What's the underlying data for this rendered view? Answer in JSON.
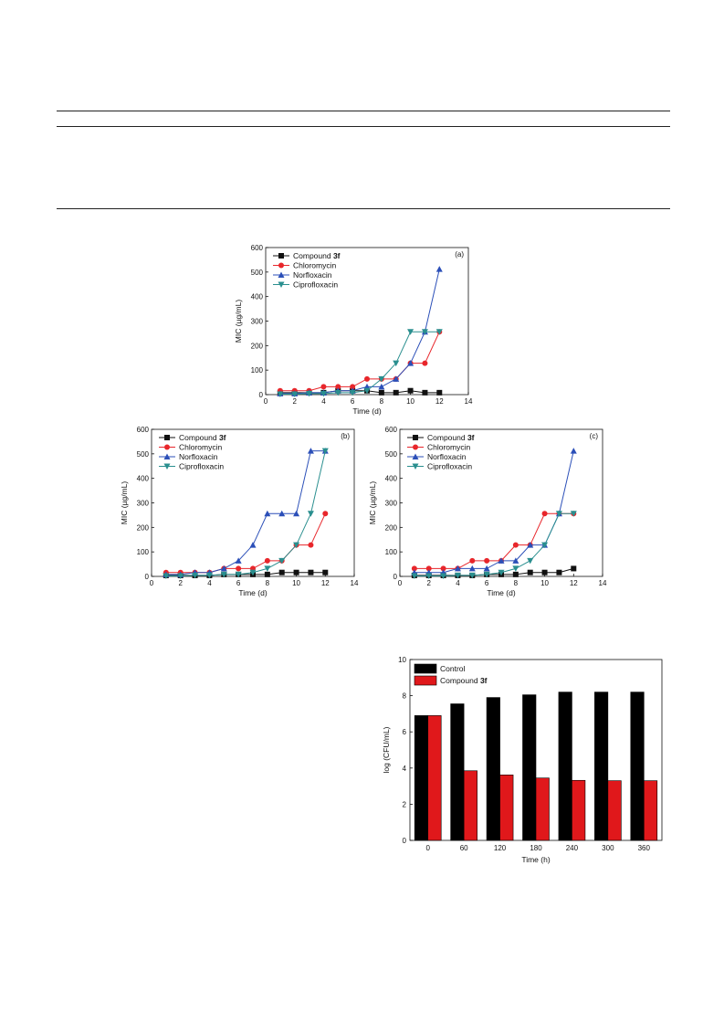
{
  "colors": {
    "compound_3f": "#111111",
    "chloromycin": "#e8262b",
    "norfloxacin": "#2b4fb8",
    "ciprofloxacin": "#2a8f8f",
    "control_bar": "#000000",
    "compound_bar": "#e0181b"
  },
  "chart_data": [
    {
      "type": "line",
      "panel_label": "(a)",
      "xlabel": "Time (d)",
      "ylabel": "MIC (µg/mL)",
      "xlim": [
        0,
        14
      ],
      "ylim": [
        0,
        600
      ],
      "xticks": [
        "0",
        "2",
        "4",
        "6",
        "8",
        "10",
        "12",
        "14"
      ],
      "yticks": [
        "0",
        "100",
        "200",
        "300",
        "400",
        "500",
        "600"
      ],
      "legend_position": "top-left",
      "x": [
        1,
        2,
        3,
        4,
        5,
        6,
        7,
        8,
        9,
        10,
        11,
        12
      ],
      "series": [
        {
          "name": "Compound ",
          "name_bold": "3f",
          "marker": "square",
          "color_key": "compound_3f",
          "values": [
            8,
            8,
            8,
            8,
            16,
            16,
            16,
            8,
            8,
            16,
            8,
            8
          ]
        },
        {
          "name": "Chloromycin",
          "name_bold": "",
          "marker": "circle",
          "color_key": "chloromycin",
          "values": [
            16,
            16,
            16,
            32,
            32,
            32,
            64,
            64,
            64,
            128,
            128,
            256
          ]
        },
        {
          "name": "Norfloxacin",
          "name_bold": "",
          "marker": "triangle-up",
          "color_key": "norfloxacin",
          "values": [
            4,
            4,
            8,
            8,
            16,
            16,
            32,
            32,
            64,
            128,
            256,
            512
          ]
        },
        {
          "name": "Ciprofloxacin",
          "name_bold": "",
          "marker": "triangle-down",
          "color_key": "ciprofloxacin",
          "values": [
            2,
            2,
            4,
            4,
            8,
            8,
            16,
            64,
            128,
            256,
            256,
            256
          ]
        }
      ]
    },
    {
      "type": "line",
      "panel_label": "(b)",
      "xlabel": "Time (d)",
      "ylabel": "MIC (µg/mL)",
      "xlim": [
        0,
        14
      ],
      "ylim": [
        0,
        600
      ],
      "xticks": [
        "0",
        "2",
        "4",
        "6",
        "8",
        "10",
        "12",
        "14"
      ],
      "yticks": [
        "0",
        "100",
        "200",
        "300",
        "400",
        "500",
        "600"
      ],
      "legend_position": "top-left",
      "x": [
        1,
        2,
        3,
        4,
        5,
        6,
        7,
        8,
        9,
        10,
        11,
        12
      ],
      "series": [
        {
          "name": "Compound ",
          "name_bold": "3f",
          "marker": "square",
          "color_key": "compound_3f",
          "values": [
            4,
            4,
            4,
            4,
            8,
            8,
            8,
            8,
            16,
            16,
            16,
            16
          ]
        },
        {
          "name": "Chloromycin",
          "name_bold": "",
          "marker": "circle",
          "color_key": "chloromycin",
          "values": [
            16,
            16,
            16,
            16,
            32,
            32,
            32,
            64,
            64,
            128,
            128,
            256
          ]
        },
        {
          "name": "Norfloxacin",
          "name_bold": "",
          "marker": "triangle-up",
          "color_key": "norfloxacin",
          "values": [
            8,
            8,
            16,
            16,
            32,
            64,
            128,
            256,
            256,
            256,
            512,
            512
          ]
        },
        {
          "name": "Ciprofloxacin",
          "name_bold": "",
          "marker": "triangle-down",
          "color_key": "ciprofloxacin",
          "values": [
            2,
            2,
            4,
            4,
            8,
            8,
            16,
            32,
            64,
            128,
            256,
            512
          ]
        }
      ]
    },
    {
      "type": "line",
      "panel_label": "(c)",
      "xlabel": "Time (d)",
      "ylabel": "MIC (µg/mL)",
      "xlim": [
        0,
        14
      ],
      "ylim": [
        0,
        600
      ],
      "xticks": [
        "0",
        "2",
        "4",
        "6",
        "8",
        "10",
        "12",
        "14"
      ],
      "yticks": [
        "0",
        "100",
        "200",
        "300",
        "400",
        "500",
        "600"
      ],
      "legend_position": "top-left",
      "x": [
        1,
        2,
        3,
        4,
        5,
        6,
        7,
        8,
        9,
        10,
        11,
        12
      ],
      "series": [
        {
          "name": "Compound ",
          "name_bold": "3f",
          "marker": "square",
          "color_key": "compound_3f",
          "values": [
            4,
            4,
            4,
            4,
            4,
            8,
            8,
            8,
            16,
            16,
            16,
            32
          ]
        },
        {
          "name": "Chloromycin",
          "name_bold": "",
          "marker": "circle",
          "color_key": "chloromycin",
          "values": [
            32,
            32,
            32,
            32,
            64,
            64,
            64,
            128,
            128,
            256,
            256,
            256
          ]
        },
        {
          "name": "Norfloxacin",
          "name_bold": "",
          "marker": "triangle-up",
          "color_key": "norfloxacin",
          "values": [
            16,
            16,
            16,
            32,
            32,
            32,
            64,
            64,
            128,
            128,
            256,
            512
          ]
        },
        {
          "name": "Ciprofloxacin",
          "name_bold": "",
          "marker": "triangle-down",
          "color_key": "ciprofloxacin",
          "values": [
            2,
            2,
            2,
            4,
            4,
            8,
            16,
            32,
            64,
            128,
            256,
            256
          ]
        }
      ]
    },
    {
      "type": "bar",
      "xlabel": "Time (h)",
      "ylabel": "log (CFU/mL)",
      "ylim": [
        0,
        10
      ],
      "yticks": [
        "0",
        "2",
        "4",
        "6",
        "8",
        "10"
      ],
      "categories": [
        "0",
        "60",
        "120",
        "180",
        "240",
        "300",
        "360"
      ],
      "legend_position": "top-left",
      "series": [
        {
          "name": "Control",
          "name_bold": "",
          "color_key": "control_bar",
          "values": [
            6.9,
            7.55,
            7.9,
            8.05,
            8.2,
            8.2,
            8.2
          ]
        },
        {
          "name": "Compound ",
          "name_bold": "3f",
          "color_key": "compound_bar",
          "values": [
            6.9,
            3.85,
            3.62,
            3.45,
            3.32,
            3.3,
            3.3
          ]
        }
      ]
    }
  ]
}
